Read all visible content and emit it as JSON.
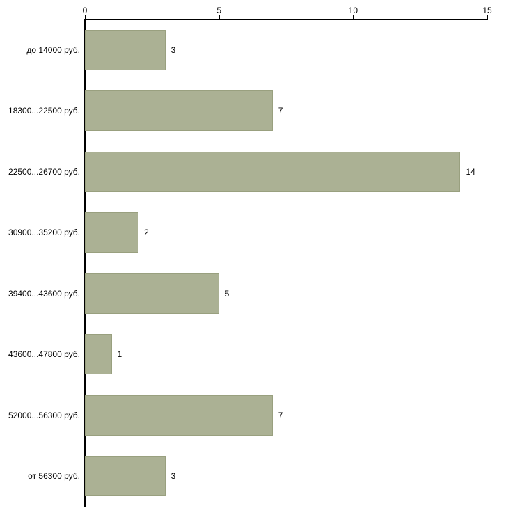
{
  "chart_data": {
    "type": "bar",
    "orientation": "horizontal",
    "title": "",
    "xlabel": "",
    "ylabel": "",
    "categories": [
      "до 14000 руб.",
      "18300...22500 руб.",
      "22500...26700 руб.",
      "30900...35200 руб.",
      "39400...43600 руб.",
      "43600...47800 руб.",
      "52000...56300 руб.",
      "от 56300 руб."
    ],
    "values": [
      3,
      7,
      14,
      2,
      5,
      1,
      7,
      3
    ],
    "xlim": [
      0,
      15
    ],
    "xticks": [
      0,
      5,
      10,
      15
    ],
    "grid": false,
    "legend": "none",
    "colors": {
      "bar_fill": "#abb194",
      "bar_border": "#99a07f",
      "axis": "#000000",
      "text": "#000000",
      "background": "#ffffff"
    }
  }
}
